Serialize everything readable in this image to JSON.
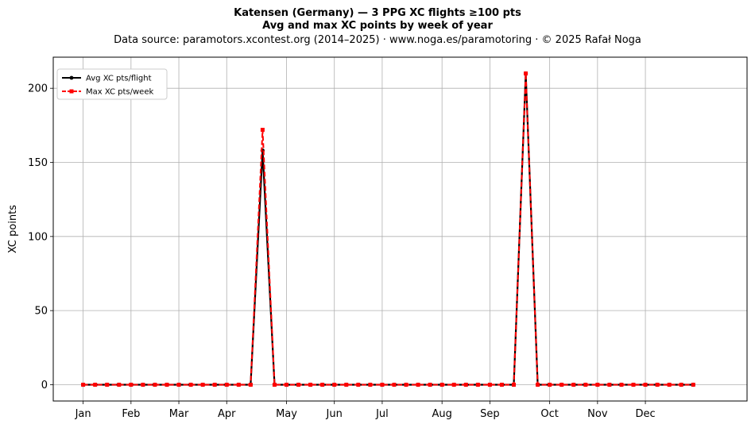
{
  "chart_data": {
    "type": "line",
    "title": "Katensen (Germany)  —  3 PPG XC flights ≥100 pts",
    "subtitle": "Avg and max XC points by week of year",
    "source_line": "Data source: paramotors.xcontest.org (2014–2025)  ·  www.noga.es/paramotoring  ·  © 2025 Rafał Noga",
    "xlabel": "",
    "ylabel": "XC points",
    "x_range": [
      -2.5,
      55.5
    ],
    "ylim": [
      -11,
      221
    ],
    "yticks": [
      0,
      50,
      100,
      150,
      200
    ],
    "xticks": [
      {
        "label": "Jan",
        "week": 0
      },
      {
        "label": "Feb",
        "week": 4
      },
      {
        "label": "Mar",
        "week": 8
      },
      {
        "label": "Apr",
        "week": 12
      },
      {
        "label": "May",
        "week": 17
      },
      {
        "label": "Jun",
        "week": 21
      },
      {
        "label": "Jul",
        "week": 25
      },
      {
        "label": "Aug",
        "week": 30
      },
      {
        "label": "Sep",
        "week": 34
      },
      {
        "label": "Oct",
        "week": 39
      },
      {
        "label": "Nov",
        "week": 43
      },
      {
        "label": "Dec",
        "week": 47
      }
    ],
    "grid": true,
    "legend_position": "top-left",
    "weeks": [
      0,
      1,
      2,
      3,
      4,
      5,
      6,
      7,
      8,
      9,
      10,
      11,
      12,
      13,
      14,
      15,
      16,
      17,
      18,
      19,
      20,
      21,
      22,
      23,
      24,
      25,
      26,
      27,
      28,
      29,
      30,
      31,
      32,
      33,
      34,
      35,
      36,
      37,
      38,
      39,
      40,
      41,
      42,
      43,
      44,
      45,
      46,
      47,
      48,
      49,
      50,
      51
    ],
    "series": [
      {
        "name": "Avg XC pts/flight",
        "color": "#000000",
        "dash": "solid",
        "marker": "circle",
        "values": [
          0,
          0,
          0,
          0,
          0,
          0,
          0,
          0,
          0,
          0,
          0,
          0,
          0,
          0,
          0,
          158,
          0,
          0,
          0,
          0,
          0,
          0,
          0,
          0,
          0,
          0,
          0,
          0,
          0,
          0,
          0,
          0,
          0,
          0,
          0,
          0,
          0,
          210,
          0,
          0,
          0,
          0,
          0,
          0,
          0,
          0,
          0,
          0,
          0,
          0,
          0,
          0
        ]
      },
      {
        "name": "Max XC pts/week",
        "color": "#ff0000",
        "dash": "dashed",
        "marker": "square",
        "values": [
          0,
          0,
          0,
          0,
          0,
          0,
          0,
          0,
          0,
          0,
          0,
          0,
          0,
          0,
          0,
          172,
          0,
          0,
          0,
          0,
          0,
          0,
          0,
          0,
          0,
          0,
          0,
          0,
          0,
          0,
          0,
          0,
          0,
          0,
          0,
          0,
          0,
          210,
          0,
          0,
          0,
          0,
          0,
          0,
          0,
          0,
          0,
          0,
          0,
          0,
          0,
          0
        ]
      }
    ]
  }
}
